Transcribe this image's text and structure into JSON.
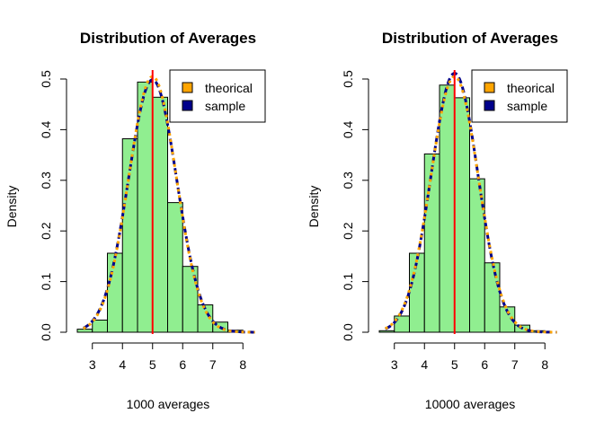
{
  "colors": {
    "bar_fill": "#90ee90",
    "bar_stroke": "#000000",
    "theoretical": "#ffa500",
    "sample": "#00008b",
    "mean_line": "#ff0000"
  },
  "chart_data": [
    {
      "type": "bar",
      "title": "Distribution of Averages",
      "xlabel": "1000 averages",
      "ylabel": "Density",
      "xlim": [
        2.5,
        8.5
      ],
      "ylim": [
        0,
        0.5
      ],
      "xticks": [
        3,
        4,
        5,
        6,
        7,
        8
      ],
      "yticks": [
        0.0,
        0.1,
        0.2,
        0.3,
        0.4,
        0.5
      ],
      "bins": [
        {
          "x0": 2.5,
          "x1": 3.0,
          "density": 0.006
        },
        {
          "x0": 3.0,
          "x1": 3.5,
          "density": 0.024
        },
        {
          "x0": 3.5,
          "x1": 4.0,
          "density": 0.156
        },
        {
          "x0": 4.0,
          "x1": 4.5,
          "density": 0.382
        },
        {
          "x0": 4.5,
          "x1": 5.0,
          "density": 0.494
        },
        {
          "x0": 5.0,
          "x1": 5.5,
          "density": 0.464
        },
        {
          "x0": 5.5,
          "x1": 6.0,
          "density": 0.256
        },
        {
          "x0": 6.0,
          "x1": 6.5,
          "density": 0.13
        },
        {
          "x0": 6.5,
          "x1": 7.0,
          "density": 0.054
        },
        {
          "x0": 7.0,
          "x1": 7.5,
          "density": 0.02
        },
        {
          "x0": 7.5,
          "x1": 8.0,
          "density": 0.004
        }
      ],
      "mean_line_x": 5.0,
      "theoretical_curve": {
        "mean": 5.0,
        "sd": 0.79
      },
      "sample_curve": {
        "mean": 5.0,
        "sd": 0.8
      },
      "curve_range": [
        2.7,
        8.4
      ],
      "legend": {
        "position": "top-right",
        "entries": [
          "theorical",
          "sample"
        ]
      }
    },
    {
      "type": "bar",
      "title": "Distribution of Averages",
      "xlabel": "10000 averages",
      "ylabel": "Density",
      "xlim": [
        2.5,
        8.5
      ],
      "ylim": [
        0,
        0.5
      ],
      "xticks": [
        3,
        4,
        5,
        6,
        7,
        8
      ],
      "yticks": [
        0.0,
        0.1,
        0.2,
        0.3,
        0.4,
        0.5
      ],
      "bins": [
        {
          "x0": 2.5,
          "x1": 3.0,
          "density": 0.003
        },
        {
          "x0": 3.0,
          "x1": 3.5,
          "density": 0.032
        },
        {
          "x0": 3.5,
          "x1": 4.0,
          "density": 0.156
        },
        {
          "x0": 4.0,
          "x1": 4.5,
          "density": 0.352
        },
        {
          "x0": 4.5,
          "x1": 5.0,
          "density": 0.488
        },
        {
          "x0": 5.0,
          "x1": 5.5,
          "density": 0.463
        },
        {
          "x0": 5.5,
          "x1": 6.0,
          "density": 0.303
        },
        {
          "x0": 6.0,
          "x1": 6.5,
          "density": 0.137
        },
        {
          "x0": 6.5,
          "x1": 7.0,
          "density": 0.05
        },
        {
          "x0": 7.0,
          "x1": 7.5,
          "density": 0.014
        },
        {
          "x0": 7.5,
          "x1": 8.0,
          "density": 0.003
        }
      ],
      "mean_line_x": 5.0,
      "theoretical_curve": {
        "mean": 5.0,
        "sd": 0.79
      },
      "sample_curve": {
        "mean": 5.0,
        "sd": 0.78
      },
      "curve_range": [
        2.7,
        8.4
      ],
      "legend": {
        "position": "top-right",
        "entries": [
          "theorical",
          "sample"
        ]
      }
    }
  ]
}
